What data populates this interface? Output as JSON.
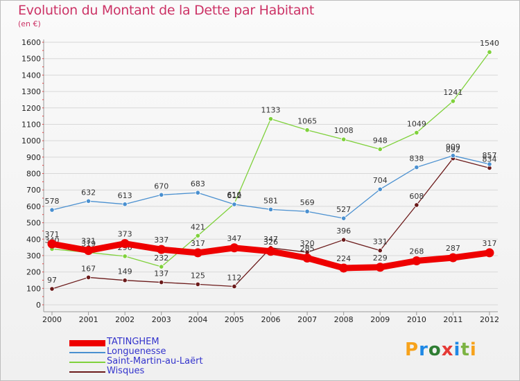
{
  "title": "Evolution du Montant de la Dette par Habitant",
  "subtitle": "(en €)",
  "logo": {
    "text": "Proxiti",
    "colors": [
      "#f7a21b",
      "#1e88e5",
      "#2e7d32",
      "#e53935",
      "#1e88e5",
      "#7cb342",
      "#f7a21b"
    ]
  },
  "chart_data": {
    "type": "line",
    "title": "Evolution du Montant de la Dette par Habitant",
    "ylabel": "(en €)",
    "xlabel": "",
    "x": [
      "2000",
      "2001",
      "2002",
      "2003",
      "2004",
      "2005",
      "2006",
      "2007",
      "2008",
      "2009",
      "2010",
      "2011",
      "2012"
    ],
    "ylim": [
      0,
      1600
    ],
    "yticks": [
      0,
      100,
      200,
      300,
      400,
      500,
      600,
      700,
      800,
      900,
      1000,
      1100,
      1200,
      1300,
      1400,
      1500,
      1600
    ],
    "grid": "horizontal",
    "legend_position": "bottom-left",
    "series": [
      {
        "name": "Wisques",
        "color": "#6b1a1a",
        "width": "thin",
        "values": [
          97,
          167,
          149,
          137,
          125,
          112,
          347,
          320,
          396,
          331,
          608,
          892,
          834
        ]
      },
      {
        "name": "Saint-Martin-au-Laërt",
        "color": "#7fd13b",
        "width": "thin",
        "values": [
          340,
          319,
          296,
          232,
          421,
          616,
          1133,
          1065,
          1008,
          948,
          1049,
          1241,
          1540
        ]
      },
      {
        "name": "Longuenesse",
        "color": "#4a90d0",
        "width": "thin",
        "values": [
          578,
          632,
          613,
          670,
          683,
          612,
          581,
          569,
          527,
          704,
          838,
          909,
          857
        ]
      },
      {
        "name": "TATINGHEM",
        "color": "#ee0000",
        "width": "thick",
        "values": [
          371,
          331,
          373,
          337,
          317,
          347,
          326,
          285,
          224,
          229,
          268,
          287,
          317
        ]
      }
    ]
  }
}
